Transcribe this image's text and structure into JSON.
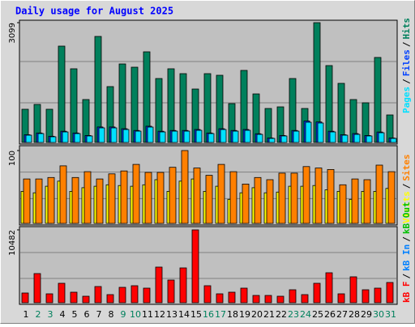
{
  "chart_data": {
    "type": "bar",
    "title": "Daily usage for August 2025",
    "separator": "/",
    "categories": [
      "1",
      "2",
      "3",
      "4",
      "5",
      "6",
      "7",
      "8",
      "9",
      "10",
      "11",
      "12",
      "13",
      "14",
      "15",
      "16",
      "17",
      "18",
      "19",
      "20",
      "21",
      "22",
      "23",
      "24",
      "25",
      "26",
      "27",
      "28",
      "29",
      "30",
      "31"
    ],
    "category_colors": [
      "#000000",
      "#00805c",
      "#00805c",
      "#000000",
      "#000000",
      "#000000",
      "#000000",
      "#000000",
      "#00805c",
      "#00805c",
      "#000000",
      "#000000",
      "#000000",
      "#000000",
      "#000000",
      "#00805c",
      "#00805c",
      "#000000",
      "#000000",
      "#000000",
      "#000000",
      "#000000",
      "#00805c",
      "#00805c",
      "#000000",
      "#000000",
      "#000000",
      "#000000",
      "#000000",
      "#00805c",
      "#00805c"
    ],
    "panels": [
      {
        "ylim": [
          0,
          3099
        ],
        "yticks": [
          3099
        ],
        "series": [
          {
            "name": "Hits",
            "color": "#00805c",
            "values": [
              859,
              984,
              859,
              2492,
              1906,
              1110,
              2743,
              1445,
              2031,
              1947,
              2345,
              1654,
              1906,
              1780,
              1382,
              1780,
              1738,
              1005,
              1864,
              1256,
              879,
              921,
              1654,
              879,
              3099,
              1989,
              1529,
              1110,
              1026,
              2199,
              712
            ]
          },
          {
            "name": "Files",
            "color": "#0040ff",
            "values": [
              200,
              245,
              160,
              290,
              245,
              180,
              400,
              400,
              355,
              310,
              420,
              290,
              310,
              310,
              335,
              245,
              355,
              310,
              335,
              225,
              115,
              180,
              310,
              555,
              530,
              290,
              200,
              230,
              180,
              270,
              115
            ]
          },
          {
            "name": "Pages",
            "color": "#00e0ff",
            "values": [
              188,
              230,
              147,
              272,
              230,
              168,
              377,
              377,
              335,
              293,
              398,
              272,
              293,
              293,
              314,
              230,
              335,
              293,
              314,
              209,
              105,
              168,
              293,
              523,
              503,
              272,
              188,
              209,
              168,
              251,
              105
            ]
          }
        ]
      },
      {
        "ylim": [
          0,
          100
        ],
        "yticks": [
          100
        ],
        "series": [
          {
            "name": "Visits",
            "color": "#ffff00",
            "values": [
              44,
              42,
              51,
              58,
              44,
              49,
              51,
              53,
              52,
              51,
              53,
              60,
              44,
              58,
              61,
              44,
              51,
              33,
              42,
              49,
              42,
              43,
              51,
              51,
              52,
              46,
              44,
              33,
              44,
              44,
              48
            ]
          },
          {
            "name": "Sites",
            "color": "#ff8000",
            "values": [
              61,
              61,
              63,
              79,
              63,
              71,
              61,
              68,
              72,
              81,
              70,
              70,
              77,
              100,
              76,
              66,
              81,
              71,
              54,
              63,
              60,
              69,
              69,
              78,
              76,
              74,
              53,
              61,
              60,
              80,
              71
            ]
          }
        ]
      },
      {
        "ylim": [
          0,
          10482
        ],
        "yticks": [
          10482
        ],
        "series": [
          {
            "name": "kB F",
            "color": "#ff0000",
            "values": [
              1398,
              4194,
              1281,
              2796,
              1514,
              932,
              2330,
              1165,
              2213,
              2446,
              2097,
              5126,
              3262,
              5009,
              10482,
              2446,
              1281,
              1514,
              2097,
              1048,
              1048,
              932,
              1864,
              1165,
              2796,
              4310,
              1281,
              3728,
              1864,
              2097,
              2912
            ]
          },
          {
            "name": "kB In",
            "color": "#0080ff",
            "values": null
          },
          {
            "name": "kB Out",
            "color": "#00c000",
            "values": null
          }
        ]
      }
    ]
  }
}
